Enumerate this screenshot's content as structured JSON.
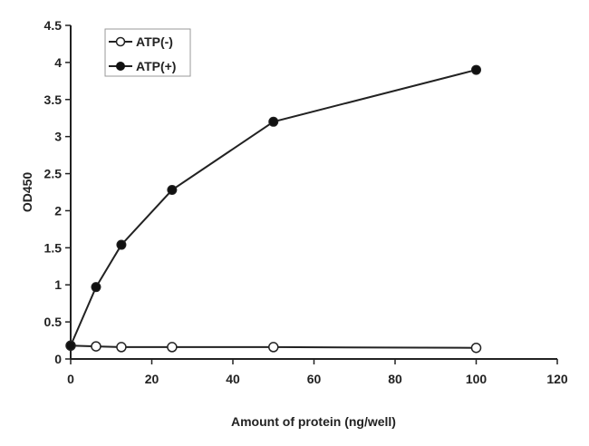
{
  "chart_data": {
    "type": "line",
    "xlabel": "Amount of protein (ng/well)",
    "ylabel": "OD450",
    "xlim": [
      0,
      120
    ],
    "ylim": [
      0,
      4.5
    ],
    "xticks": [
      0,
      20,
      40,
      60,
      80,
      100,
      120
    ],
    "yticks": [
      0,
      0.5,
      1,
      1.5,
      2,
      2.5,
      3,
      3.5,
      4,
      4.5
    ],
    "x_tick_labels": [
      "0",
      "20",
      "40",
      "60",
      "80",
      "100",
      "120"
    ],
    "y_tick_labels": [
      "0",
      "0.5",
      "1",
      "1.5",
      "2",
      "2.5",
      "3",
      "3.5",
      "4",
      "4.5"
    ],
    "grid": false,
    "legend_position": "top-left",
    "series": [
      {
        "name": "ATP(-)",
        "marker": "open-circle",
        "color": "#222222",
        "x": [
          0,
          6.25,
          12.5,
          25,
          50,
          100
        ],
        "y": [
          0.18,
          0.17,
          0.16,
          0.16,
          0.16,
          0.15
        ]
      },
      {
        "name": "ATP(+)",
        "marker": "filled-circle",
        "color": "#111111",
        "x": [
          0,
          6.25,
          12.5,
          25,
          50,
          100
        ],
        "y": [
          0.18,
          0.97,
          1.54,
          2.28,
          3.2,
          3.9
        ]
      }
    ]
  }
}
